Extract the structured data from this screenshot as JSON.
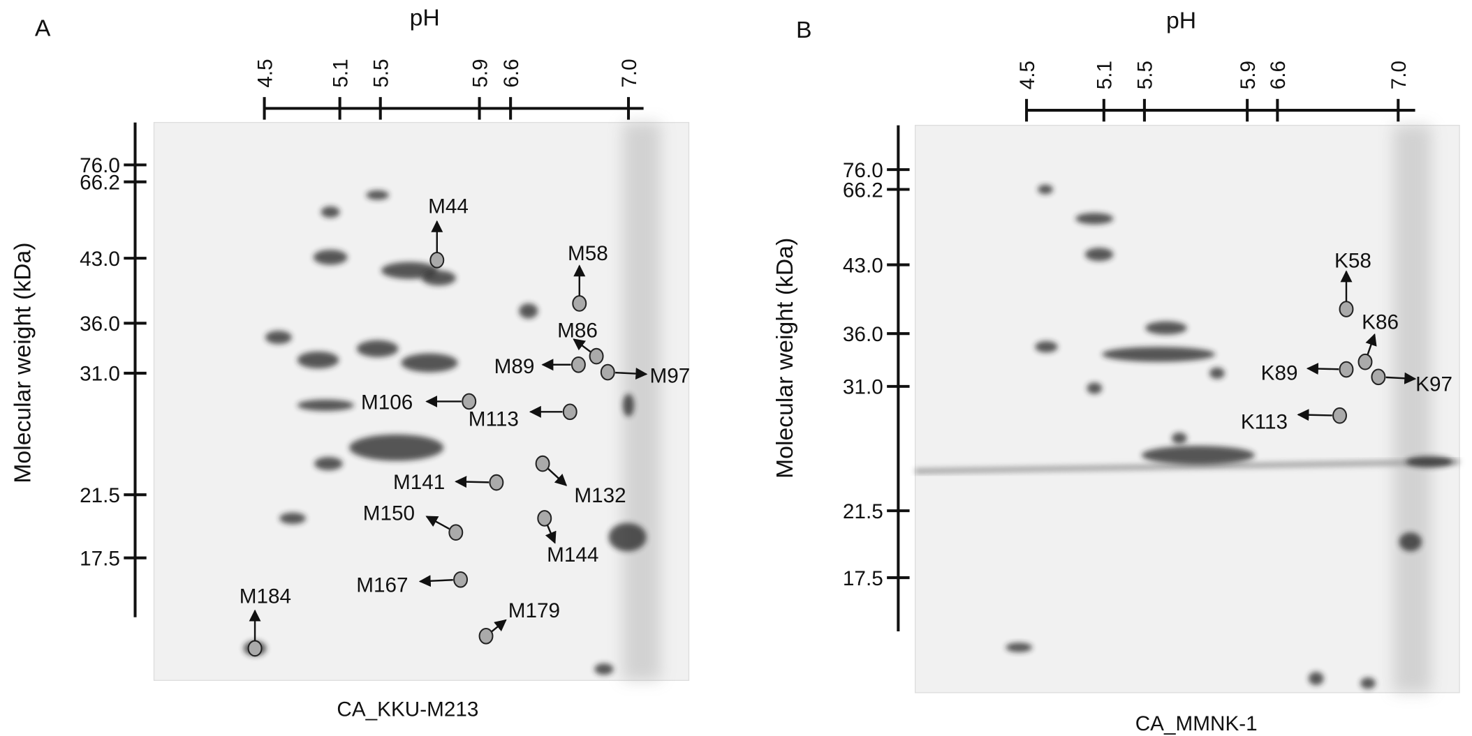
{
  "panels": [
    {
      "label": "A",
      "x_title": "pH",
      "ph_ticks": [
        "4.5",
        "5.1",
        "5.5",
        "5.9",
        "6.6",
        "7.0"
      ],
      "y_title": "Molecular weight (kDa)",
      "mw_ticks": [
        "76.0",
        "66.2",
        "43.0",
        "36.0",
        "31.0",
        "21.5",
        "17.5"
      ],
      "spots": [
        "M44",
        "M58",
        "M86",
        "M89",
        "M97",
        "M106",
        "M113",
        "M141",
        "M132",
        "M150",
        "M144",
        "M167",
        "M179",
        "M184"
      ],
      "caption": "CA_KKU-M213"
    },
    {
      "label": "B",
      "x_title": "pH",
      "ph_ticks": [
        "4.5",
        "5.1",
        "5.5",
        "5.9",
        "6.6",
        "7.0"
      ],
      "y_title": "Molecular weight (kDa)",
      "mw_ticks": [
        "76.0",
        "66.2",
        "43.0",
        "36.0",
        "31.0",
        "21.5",
        "17.5"
      ],
      "spots": [
        "K58",
        "K86",
        "K89",
        "K97",
        "K113"
      ],
      "caption": "CA_MMNK-1"
    }
  ]
}
